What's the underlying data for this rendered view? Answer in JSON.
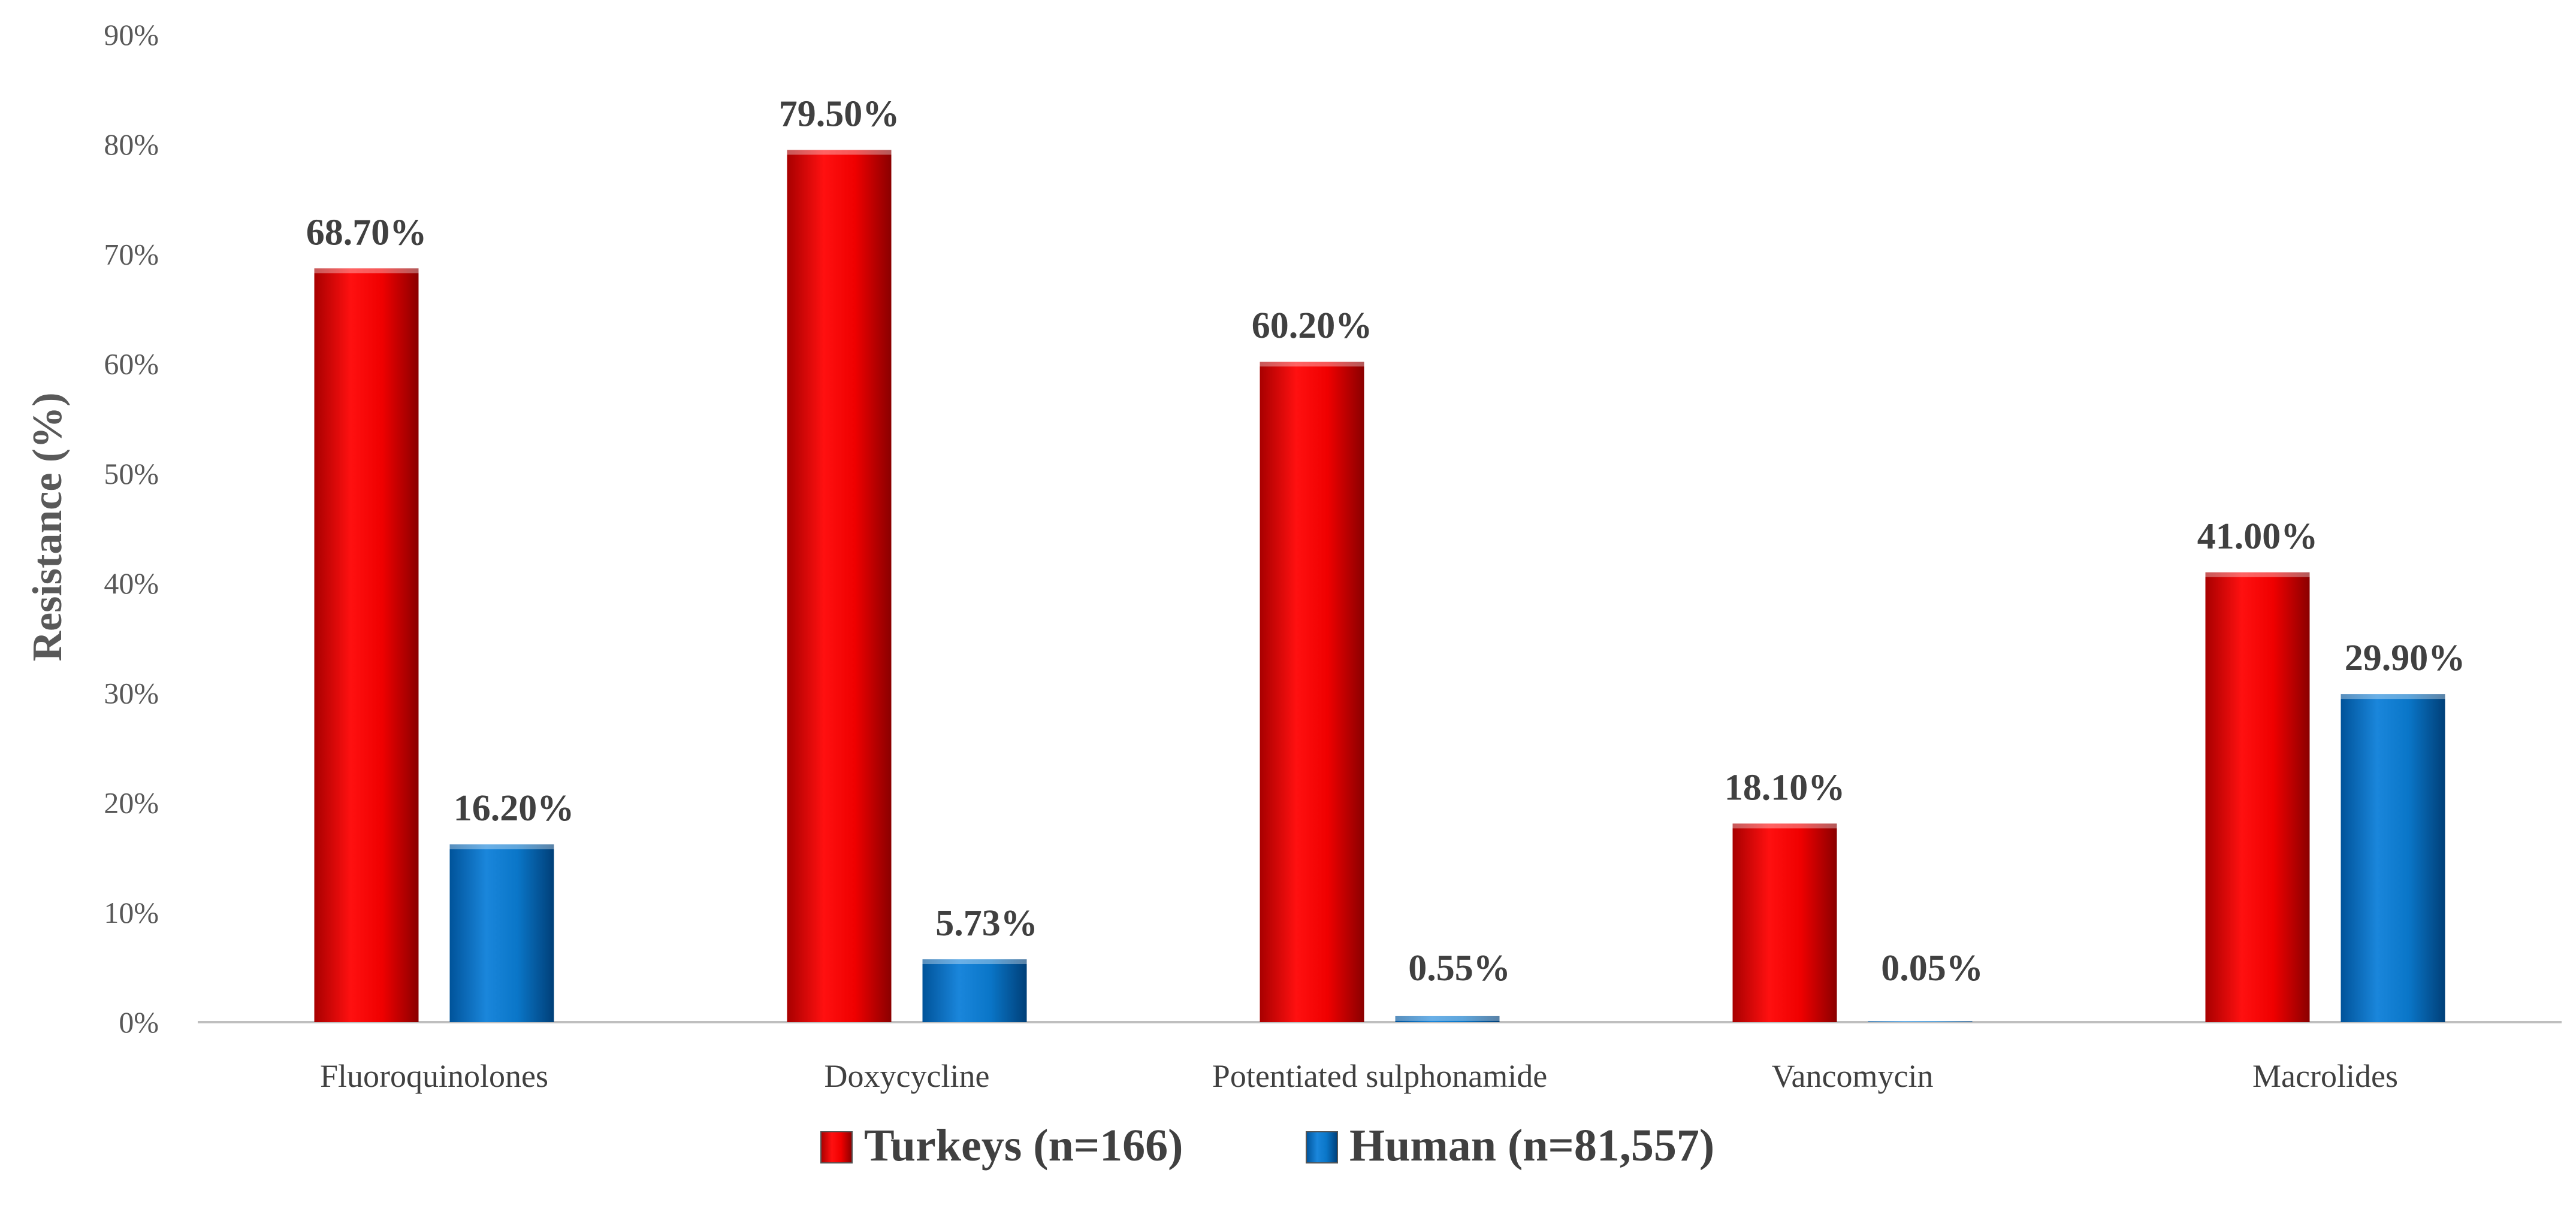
{
  "chart_data": {
    "type": "bar",
    "categories": [
      "Fluoroquinolones",
      "Doxycycline",
      "Potentiated sulphonamide",
      "Vancomycin",
      "Macrolides"
    ],
    "series": [
      {
        "name": "Turkeys (n=166)",
        "color": "#e00000",
        "values": [
          68.7,
          79.5,
          60.2,
          18.1,
          41.0
        ],
        "labels": [
          "68.70%",
          "79.50%",
          "60.20%",
          "18.10%",
          "41.00%"
        ]
      },
      {
        "name": "Human (n=81,557)",
        "color": "#0070c0",
        "values": [
          16.2,
          5.73,
          0.55,
          0.05,
          29.9
        ],
        "labels": [
          "16.20%",
          "5.73%",
          "0.55%",
          "0.05%",
          "29.90%"
        ]
      }
    ],
    "ylabel": "Resistance (%)",
    "xlabel": "",
    "ylim": [
      0,
      90
    ],
    "yticks": [
      "0%",
      "10%",
      "20%",
      "30%",
      "40%",
      "50%",
      "60%",
      "70%",
      "80%",
      "90%"
    ],
    "grid": false,
    "legend_position": "bottom"
  }
}
